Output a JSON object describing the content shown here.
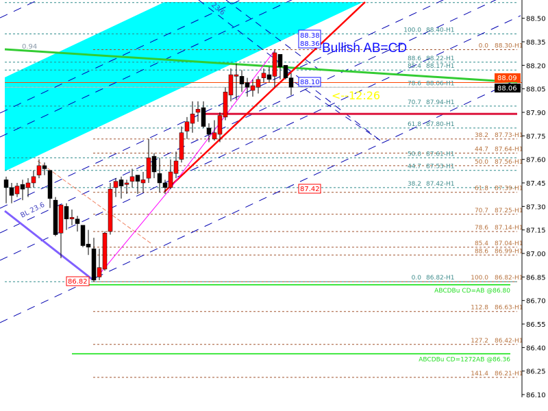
{
  "chart_data": {
    "type": "candlestick",
    "timeframe": "H1",
    "colors": {
      "up": "#ff0000",
      "down": "#000000",
      "background": "#ffffff",
      "channel_fill": "#00ffff",
      "teal_levels": "#2e8b8b",
      "brown_levels": "#a0522d"
    },
    "yaxis": {
      "range": [
        86.05,
        88.62
      ],
      "ticks": [
        "88.50",
        "88.35",
        "88.20",
        "88.05",
        "87.90",
        "87.75",
        "87.60",
        "87.45",
        "87.30",
        "87.15",
        "87.00",
        "86.85",
        "86.70",
        "86.55",
        "86.40",
        "86.25",
        "86.10"
      ]
    },
    "grid": false,
    "candles": [
      [
        87.47,
        87.49,
        87.32,
        87.42
      ],
      [
        87.42,
        87.45,
        87.32,
        87.37
      ],
      [
        87.38,
        87.45,
        87.36,
        87.43
      ],
      [
        87.44,
        87.47,
        87.34,
        87.41
      ],
      [
        87.42,
        87.48,
        87.36,
        87.45
      ],
      [
        87.45,
        87.53,
        87.42,
        87.49
      ],
      [
        87.5,
        87.6,
        87.48,
        87.56
      ],
      [
        87.56,
        87.58,
        87.5,
        87.54
      ],
      [
        87.53,
        87.53,
        87.29,
        87.35
      ],
      [
        87.34,
        87.36,
        87.11,
        87.12
      ],
      [
        87.13,
        87.31,
        86.97,
        87.31
      ],
      [
        87.3,
        87.32,
        87.15,
        87.22
      ],
      [
        87.22,
        87.28,
        87.18,
        87.23
      ],
      [
        87.22,
        87.24,
        87.14,
        87.19
      ],
      [
        87.18,
        87.18,
        87.04,
        87.05
      ],
      [
        87.06,
        87.15,
        86.99,
        87.04
      ],
      [
        87.03,
        87.1,
        86.82,
        86.83
      ],
      [
        86.85,
        87.03,
        86.83,
        86.91
      ],
      [
        86.9,
        87.14,
        86.89,
        87.13
      ],
      [
        87.14,
        87.45,
        87.12,
        87.41
      ],
      [
        87.42,
        87.48,
        87.36,
        87.46
      ],
      [
        87.47,
        87.49,
        87.35,
        87.43
      ],
      [
        87.44,
        87.47,
        87.38,
        87.45
      ],
      [
        87.46,
        87.54,
        87.42,
        87.49
      ],
      [
        87.5,
        87.5,
        87.38,
        87.46
      ],
      [
        87.45,
        87.52,
        87.39,
        87.47
      ],
      [
        87.48,
        87.73,
        87.45,
        87.61
      ],
      [
        87.62,
        87.64,
        87.48,
        87.52
      ],
      [
        87.51,
        87.61,
        87.39,
        87.45
      ],
      [
        87.45,
        87.47,
        87.38,
        87.42
      ],
      [
        87.42,
        87.6,
        87.41,
        87.52
      ],
      [
        87.51,
        87.65,
        87.48,
        87.59
      ],
      [
        87.6,
        87.81,
        87.58,
        87.77
      ],
      [
        87.78,
        87.87,
        87.73,
        87.84
      ],
      [
        87.83,
        87.97,
        87.77,
        87.89
      ],
      [
        87.9,
        87.97,
        87.84,
        87.92
      ],
      [
        87.93,
        87.97,
        87.8,
        87.81
      ],
      [
        87.8,
        87.83,
        87.71,
        87.76
      ],
      [
        87.73,
        87.85,
        87.72,
        87.77
      ],
      [
        87.76,
        87.9,
        87.71,
        87.88
      ],
      [
        87.87,
        88.06,
        87.85,
        88.03
      ],
      [
        88.01,
        88.18,
        87.97,
        88.14
      ],
      [
        88.13,
        88.21,
        87.98,
        88.14
      ],
      [
        88.13,
        88.17,
        88.03,
        88.08
      ],
      [
        88.09,
        88.12,
        88.0,
        88.06
      ],
      [
        88.04,
        88.11,
        88.0,
        88.07
      ],
      [
        88.06,
        88.13,
        88.02,
        88.11
      ],
      [
        88.12,
        88.18,
        88.09,
        88.15
      ],
      [
        88.14,
        88.19,
        88.09,
        88.11
      ],
      [
        88.13,
        88.3,
        88.06,
        88.28
      ],
      [
        88.27,
        88.27,
        88.11,
        88.19
      ],
      [
        88.2,
        88.2,
        88.11,
        88.12
      ],
      [
        88.12,
        88.15,
        88.01,
        88.06
      ]
    ],
    "candle_fields": [
      "open",
      "high",
      "low",
      "close"
    ],
    "teal_fib_levels": [
      {
        "pct": "100.0",
        "label": "88.40-H1",
        "price": 88.4
      },
      {
        "pct": "88.6",
        "label": "88.22-H1",
        "price": 88.22
      },
      {
        "pct": "85.4",
        "label": "88.17-H1",
        "price": 88.17
      },
      {
        "pct": "78.6",
        "label": "88.06-H1",
        "price": 88.06
      },
      {
        "pct": "70.7",
        "label": "87.94-H1",
        "price": 87.94
      },
      {
        "pct": "61.8",
        "label": "87.80-H1",
        "price": 87.8
      },
      {
        "pct": "50.0",
        "label": "87.61-H1",
        "price": 87.61
      },
      {
        "pct": "44.7",
        "label": "87.53-H1",
        "price": 87.53
      },
      {
        "pct": "38.2",
        "label": "87.42-H1",
        "price": 87.42
      },
      {
        "pct": "0.0",
        "label": "86.82-H1",
        "price": 86.82
      }
    ],
    "brown_fib_levels": [
      {
        "pct": "0.0",
        "label": "88.30-H1",
        "price": 88.3
      },
      {
        "pct": "38.2",
        "label": "87.73-H1",
        "price": 87.73
      },
      {
        "pct": "44.7",
        "label": "87.64-H1",
        "price": 87.64
      },
      {
        "pct": "50.0",
        "label": "87.56-H1",
        "price": 87.56
      },
      {
        "pct": "61.8",
        "label": "87.39-H1",
        "price": 87.39
      },
      {
        "pct": "70.7",
        "label": "87.25-H1",
        "price": 87.25
      },
      {
        "pct": "78.6",
        "label": "87.14-H1",
        "price": 87.14
      },
      {
        "pct": "85.4",
        "label": "87.04-H1",
        "price": 87.04
      },
      {
        "pct": "88.6",
        "label": "86.99-H1",
        "price": 86.99
      },
      {
        "pct": "100.0",
        "label": "86.82-H1",
        "price": 86.82
      },
      {
        "pct": "112.8",
        "label": "86.63-H1",
        "price": 86.63
      },
      {
        "pct": "127.2",
        "label": "86.42-H1",
        "price": 86.42
      },
      {
        "pct": "141.4",
        "label": "86.21-H1",
        "price": 86.21
      }
    ],
    "extra_teal_levels": [
      88.6
    ],
    "abcd_targets": [
      {
        "label": "ABCDBu CD=AB   @86.80",
        "price": 86.8
      },
      {
        "label": "ABCDBu CD=1272AB   @86.36",
        "price": 86.36
      }
    ],
    "horizontal_lines": {
      "resistance_red": 87.89,
      "bid_line": 88.09,
      "last_line": 88.06
    },
    "price_tags": {
      "bid": "88.09",
      "last": "88.06"
    },
    "annotations": {
      "pattern_title": "Bullish AB=CD",
      "countdown": "<--12:26",
      "box_high_a": "88.38",
      "box_high_b": "88.36",
      "box_current": "88.10",
      "box_c_point": "87.42",
      "box_low": "86.82",
      "ratio": "0.94",
      "bl_label": "BL 23.6",
      "fan_label": "23.6"
    }
  }
}
